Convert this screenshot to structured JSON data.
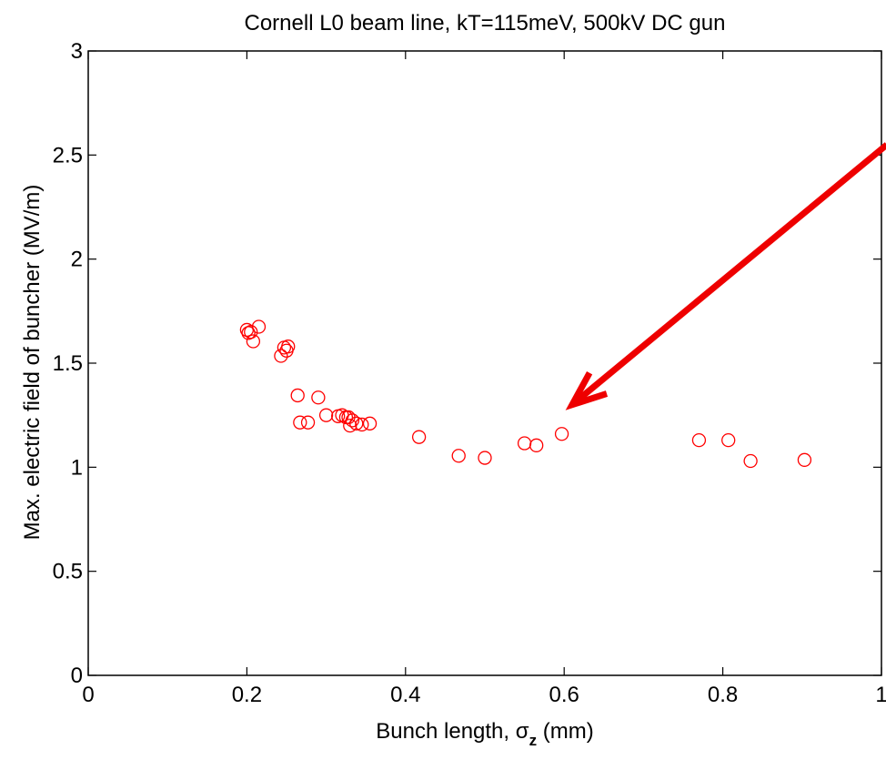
{
  "chart_data": {
    "type": "scatter",
    "title": "Cornell L0 beam line, kT=115meV, 500kV DC gun",
    "xlabel_prefix": "Bunch length, ",
    "xlabel_symbol": "σ",
    "xlabel_subscript": "z",
    "xlabel_suffix": " (mm)",
    "ylabel": "Max. electric field of buncher (MV/m)",
    "xlim": [
      0,
      1
    ],
    "ylim": [
      0,
      3
    ],
    "xticks": [
      0,
      0.2,
      0.4,
      0.6,
      0.8,
      1
    ],
    "xtick_labels": [
      "0",
      "0.2",
      "0.4",
      "0.6",
      "0.8",
      "1"
    ],
    "yticks": [
      0,
      0.5,
      1,
      1.5,
      2,
      2.5,
      3
    ],
    "ytick_labels": [
      "0",
      "0.5",
      "1",
      "1.5",
      "2",
      "2.5",
      "3"
    ],
    "grid": false,
    "marker": "open-circle",
    "marker_color": "#ff0000",
    "annotation": {
      "type": "arrow",
      "color": "#ee0000",
      "from": [
        1.0,
        2.55
      ],
      "to": [
        0.61,
        1.3
      ]
    },
    "points": [
      {
        "x": 0.2,
        "y": 1.66
      },
      {
        "x": 0.202,
        "y": 1.645
      },
      {
        "x": 0.205,
        "y": 1.65
      },
      {
        "x": 0.208,
        "y": 1.605
      },
      {
        "x": 0.215,
        "y": 1.675
      },
      {
        "x": 0.243,
        "y": 1.535
      },
      {
        "x": 0.247,
        "y": 1.575
      },
      {
        "x": 0.25,
        "y": 1.56
      },
      {
        "x": 0.252,
        "y": 1.58
      },
      {
        "x": 0.264,
        "y": 1.345
      },
      {
        "x": 0.267,
        "y": 1.215
      },
      {
        "x": 0.277,
        "y": 1.215
      },
      {
        "x": 0.29,
        "y": 1.335
      },
      {
        "x": 0.3,
        "y": 1.25
      },
      {
        "x": 0.315,
        "y": 1.245
      },
      {
        "x": 0.32,
        "y": 1.25
      },
      {
        "x": 0.325,
        "y": 1.24
      },
      {
        "x": 0.328,
        "y": 1.24
      },
      {
        "x": 0.33,
        "y": 1.2
      },
      {
        "x": 0.333,
        "y": 1.225
      },
      {
        "x": 0.338,
        "y": 1.21
      },
      {
        "x": 0.345,
        "y": 1.205
      },
      {
        "x": 0.355,
        "y": 1.21
      },
      {
        "x": 0.417,
        "y": 1.145
      },
      {
        "x": 0.467,
        "y": 1.055
      },
      {
        "x": 0.5,
        "y": 1.045
      },
      {
        "x": 0.55,
        "y": 1.115
      },
      {
        "x": 0.565,
        "y": 1.105
      },
      {
        "x": 0.597,
        "y": 1.16
      },
      {
        "x": 0.77,
        "y": 1.13
      },
      {
        "x": 0.807,
        "y": 1.13
      },
      {
        "x": 0.835,
        "y": 1.03
      },
      {
        "x": 0.903,
        "y": 1.035
      }
    ]
  }
}
